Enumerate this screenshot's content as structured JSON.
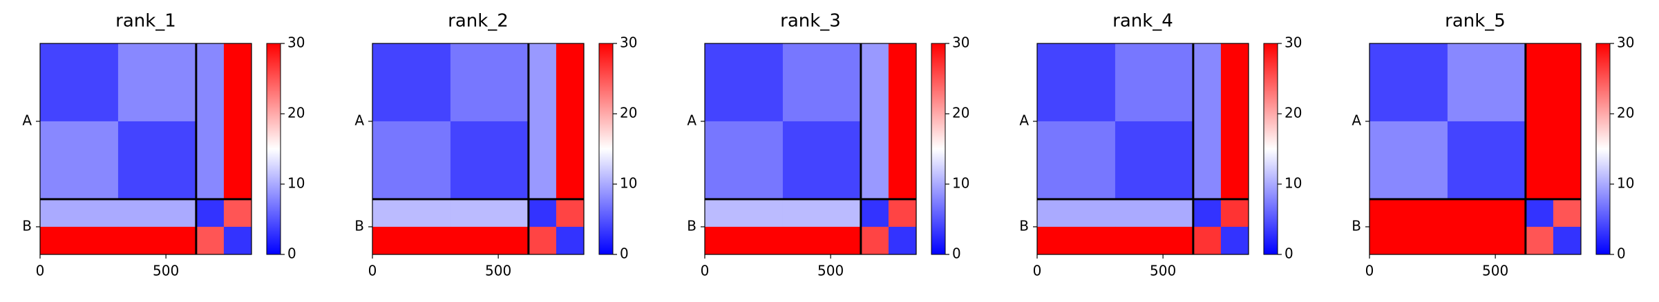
{
  "chart_data": [
    {
      "type": "heatmap",
      "title": "rank_1",
      "bins": [
        0,
        310,
        620,
        730,
        840
      ],
      "z": [
        [
          4,
          8,
          8,
          30
        ],
        [
          8,
          4,
          8,
          30
        ],
        [
          10,
          10,
          3,
          25
        ],
        [
          30,
          30,
          25,
          3
        ]
      ],
      "colormap": [
        "#0000ff",
        "#ffffff",
        "#ff0000"
      ],
      "zlim": [
        0,
        30
      ],
      "cticks": [
        0,
        10,
        20,
        30
      ],
      "xlim": [
        0,
        840
      ],
      "ylim": [
        840,
        0
      ],
      "xticks": [
        0,
        500
      ],
      "yticks": [
        {
          "value": 310,
          "label": "A"
        },
        {
          "value": 730,
          "label": "B"
        }
      ],
      "chain_breaks": [
        620
      ]
    },
    {
      "type": "heatmap",
      "title": "rank_2",
      "bins": [
        0,
        310,
        620,
        730,
        840
      ],
      "z": [
        [
          4,
          7,
          9,
          30
        ],
        [
          7,
          4,
          9,
          30
        ],
        [
          11,
          11,
          3,
          26
        ],
        [
          30,
          30,
          26,
          3
        ]
      ],
      "colormap": [
        "#0000ff",
        "#ffffff",
        "#ff0000"
      ],
      "zlim": [
        0,
        30
      ],
      "cticks": [
        0,
        10,
        20,
        30
      ],
      "xlim": [
        0,
        840
      ],
      "ylim": [
        840,
        0
      ],
      "xticks": [
        0,
        500
      ],
      "yticks": [
        {
          "value": 310,
          "label": "A"
        },
        {
          "value": 730,
          "label": "B"
        }
      ],
      "chain_breaks": [
        620
      ]
    },
    {
      "type": "heatmap",
      "title": "rank_3",
      "bins": [
        0,
        310,
        620,
        730,
        840
      ],
      "z": [
        [
          4,
          7,
          9,
          30
        ],
        [
          7,
          4,
          9,
          30
        ],
        [
          11,
          11,
          3,
          26
        ],
        [
          30,
          30,
          26,
          3
        ]
      ],
      "colormap": [
        "#0000ff",
        "#ffffff",
        "#ff0000"
      ],
      "zlim": [
        0,
        30
      ],
      "cticks": [
        0,
        10,
        20,
        30
      ],
      "xlim": [
        0,
        840
      ],
      "ylim": [
        840,
        0
      ],
      "xticks": [
        0,
        500
      ],
      "yticks": [
        {
          "value": 310,
          "label": "A"
        },
        {
          "value": 730,
          "label": "B"
        }
      ],
      "chain_breaks": [
        620
      ]
    },
    {
      "type": "heatmap",
      "title": "rank_4",
      "bins": [
        0,
        310,
        620,
        730,
        840
      ],
      "z": [
        [
          4,
          7,
          8,
          30
        ],
        [
          7,
          4,
          8,
          30
        ],
        [
          10,
          10,
          3,
          27
        ],
        [
          30,
          30,
          27,
          3
        ]
      ],
      "colormap": [
        "#0000ff",
        "#ffffff",
        "#ff0000"
      ],
      "zlim": [
        0,
        30
      ],
      "cticks": [
        0,
        10,
        20,
        30
      ],
      "xlim": [
        0,
        840
      ],
      "ylim": [
        840,
        0
      ],
      "xticks": [
        0,
        500
      ],
      "yticks": [
        {
          "value": 310,
          "label": "A"
        },
        {
          "value": 730,
          "label": "B"
        }
      ],
      "chain_breaks": [
        620
      ]
    },
    {
      "type": "heatmap",
      "title": "rank_5",
      "bins": [
        0,
        310,
        620,
        730,
        840
      ],
      "z": [
        [
          4,
          8,
          30,
          30
        ],
        [
          8,
          4,
          30,
          30
        ],
        [
          30,
          30,
          3,
          25
        ],
        [
          30,
          30,
          25,
          3
        ]
      ],
      "colormap": [
        "#0000ff",
        "#ffffff",
        "#ff0000"
      ],
      "zlim": [
        0,
        30
      ],
      "cticks": [
        0,
        10,
        20,
        30
      ],
      "xlim": [
        0,
        840
      ],
      "ylim": [
        840,
        0
      ],
      "xticks": [
        0,
        500
      ],
      "yticks": [
        {
          "value": 310,
          "label": "A"
        },
        {
          "value": 730,
          "label": "B"
        }
      ],
      "chain_breaks": [
        620
      ]
    }
  ]
}
